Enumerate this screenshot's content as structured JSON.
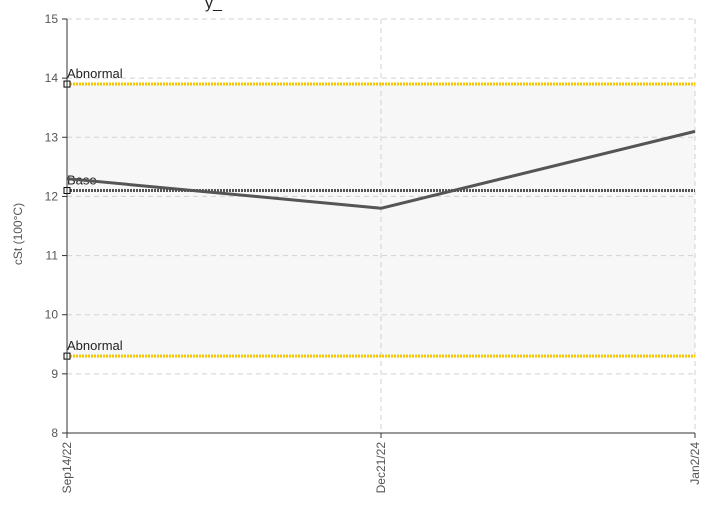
{
  "chart_data": {
    "type": "line",
    "title_partial": "y_",
    "ylabel": "cSt (100°C)",
    "xlabel": "",
    "ylim": [
      8,
      15
    ],
    "yticks": [
      8,
      9,
      10,
      11,
      12,
      13,
      14,
      15
    ],
    "categories": [
      "Sep14/22",
      "Dec21/22",
      "Jan2/24"
    ],
    "grid": true,
    "series": [
      {
        "values": [
          12.3,
          11.8,
          13.1
        ],
        "color": "#555555"
      }
    ],
    "reference_lines": [
      {
        "label": "Abnormal",
        "value": 13.9,
        "color": "#f5c400",
        "style": "dotted"
      },
      {
        "label": "Base",
        "value": 12.1,
        "color": "#555555",
        "style": "dotted"
      },
      {
        "label": "Abnormal",
        "value": 9.3,
        "color": "#f5c400",
        "style": "dotted"
      }
    ],
    "bands": [
      {
        "from": 12.1,
        "to": 13.9,
        "color": "#f7f7f7"
      },
      {
        "from": 9.3,
        "to": 12.1,
        "color": "#f7f7f7"
      }
    ]
  }
}
